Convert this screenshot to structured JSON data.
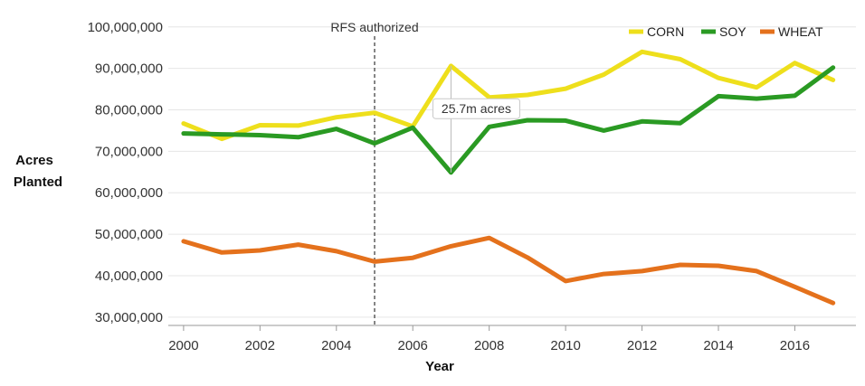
{
  "chart_data": {
    "type": "line",
    "xlabel": "Year",
    "ylabel_lines": [
      "Acres",
      "Planted"
    ],
    "xlim": [
      1999.6,
      2017.6
    ],
    "ylim": [
      28000000,
      103000000
    ],
    "x_ticks": [
      2000,
      2002,
      2004,
      2006,
      2008,
      2010,
      2012,
      2014,
      2016
    ],
    "y_ticks": [
      30000000,
      40000000,
      50000000,
      60000000,
      70000000,
      80000000,
      90000000,
      100000000
    ],
    "y_tick_labels": [
      "30,000,000",
      "40,000,000",
      "50,000,000",
      "60,000,000",
      "70,000,000",
      "80,000,000",
      "90,000,000",
      "100,000,000"
    ],
    "x_tick_labels": [
      "2000",
      "2002",
      "2004",
      "2006",
      "2008",
      "2010",
      "2012",
      "2014",
      "2016"
    ],
    "grid": true,
    "legend_position": "top-right",
    "series": [
      {
        "name": "CORN",
        "color": "#eedf1c",
        "x": [
          2000,
          2001,
          2002,
          2003,
          2004,
          2005,
          2006,
          2007,
          2008,
          2009,
          2010,
          2011,
          2012,
          2013,
          2014,
          2015,
          2016,
          2017
        ],
        "y": [
          76700000,
          73000000,
          76300000,
          76200000,
          78200000,
          79300000,
          76000000,
          90600000,
          83000000,
          83600000,
          85100000,
          88500000,
          94000000,
          92200000,
          87700000,
          85400000,
          91300000,
          87200000
        ]
      },
      {
        "name": "SOY",
        "color": "#2a9a23",
        "x": [
          2000,
          2001,
          2002,
          2003,
          2004,
          2005,
          2006,
          2007,
          2008,
          2009,
          2010,
          2011,
          2012,
          2013,
          2014,
          2015,
          2016,
          2017
        ],
        "y": [
          74300000,
          74100000,
          73900000,
          73400000,
          75400000,
          71900000,
          75700000,
          64900000,
          75900000,
          77500000,
          77400000,
          75000000,
          77200000,
          76800000,
          83300000,
          82700000,
          83400000,
          90200000
        ]
      },
      {
        "name": "WHEAT",
        "color": "#e4711c",
        "x": [
          2000,
          2001,
          2002,
          2003,
          2004,
          2005,
          2006,
          2007,
          2008,
          2009,
          2010,
          2011,
          2012,
          2013,
          2014,
          2015,
          2016,
          2017
        ],
        "y": [
          48300000,
          45600000,
          46100000,
          47500000,
          45900000,
          43400000,
          44300000,
          47100000,
          49100000,
          44400000,
          38700000,
          40400000,
          41100000,
          42600000,
          42400000,
          41100000,
          37300000,
          33400000
        ]
      }
    ],
    "reference_line": {
      "x": 2005,
      "label": "RFS authorized"
    },
    "annotation": {
      "x": 2007,
      "from": 64900000,
      "to": 90600000,
      "label": "25.7m acres"
    }
  }
}
